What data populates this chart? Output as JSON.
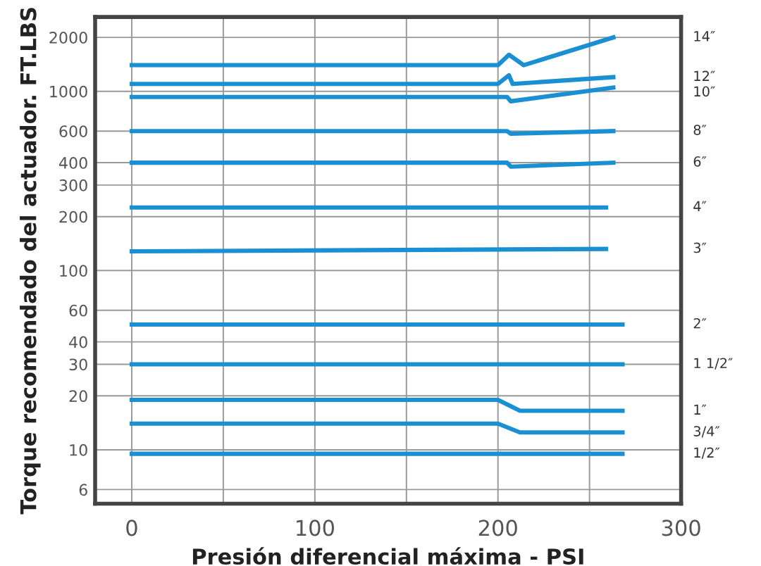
{
  "chart_data": {
    "type": "line",
    "xlabel": "Presión diferencial máxima - PSI",
    "ylabel": "Torque recomendado del actuador. FT.LBS",
    "log": "y",
    "xlim": [
      -20,
      300
    ],
    "xticks": [
      0,
      {
        "value": 50,
        "label": null
      },
      100,
      {
        "value": 150,
        "label": null
      },
      200,
      {
        "value": 250,
        "label": null
      },
      300
    ],
    "ylim": [
      5,
      2600
    ],
    "yticks": [
      6,
      10,
      20,
      30,
      40,
      60,
      100,
      200,
      300,
      400,
      600,
      1000,
      2000
    ],
    "grid": true,
    "legend": false,
    "marker": "none",
    "line_style": "solid",
    "series": [
      {
        "name": "14″",
        "color": "#1a90d2",
        "x": [
          0,
          200,
          206,
          214,
          263
        ],
        "values": [
          1400,
          1400,
          1600,
          1400,
          2000
        ]
      },
      {
        "name": "12″",
        "color": "#1a90d2",
        "x": [
          0,
          200,
          206,
          208,
          263
        ],
        "values": [
          1100,
          1100,
          1230,
          1100,
          1200
        ]
      },
      {
        "name": "10″",
        "color": "#1a90d2",
        "x": [
          0,
          205,
          207,
          263
        ],
        "values": [
          930,
          930,
          880,
          1050
        ]
      },
      {
        "name": "8″",
        "color": "#1a90d2",
        "x": [
          0,
          205,
          207,
          263
        ],
        "values": [
          600,
          600,
          580,
          600
        ]
      },
      {
        "name": "6″",
        "color": "#1a90d2",
        "x": [
          0,
          205,
          207,
          263
        ],
        "values": [
          400,
          400,
          380,
          400
        ]
      },
      {
        "name": "4″",
        "color": "#1a90d2",
        "x": [
          0,
          259
        ],
        "values": [
          225,
          225
        ]
      },
      {
        "name": "3″",
        "color": "#1a90d2",
        "x": [
          0,
          259
        ],
        "values": [
          128,
          132
        ]
      },
      {
        "name": "2″",
        "color": "#1a90d2",
        "x": [
          0,
          268
        ],
        "values": [
          50,
          50
        ]
      },
      {
        "name": "1 1/2″",
        "color": "#1a90d2",
        "x": [
          0,
          268
        ],
        "values": [
          30,
          30
        ]
      },
      {
        "name": "1″",
        "color": "#1a90d2",
        "x": [
          0,
          200,
          212,
          268
        ],
        "values": [
          19,
          19,
          16.5,
          16.5
        ]
      },
      {
        "name": "3/4″",
        "color": "#1a90d2",
        "x": [
          0,
          200,
          212,
          268
        ],
        "values": [
          14,
          14,
          12.5,
          12.5
        ]
      },
      {
        "name": "1/2″",
        "color": "#1a90d2",
        "x": [
          0,
          268
        ],
        "values": [
          9.5,
          9.5
        ]
      }
    ]
  }
}
